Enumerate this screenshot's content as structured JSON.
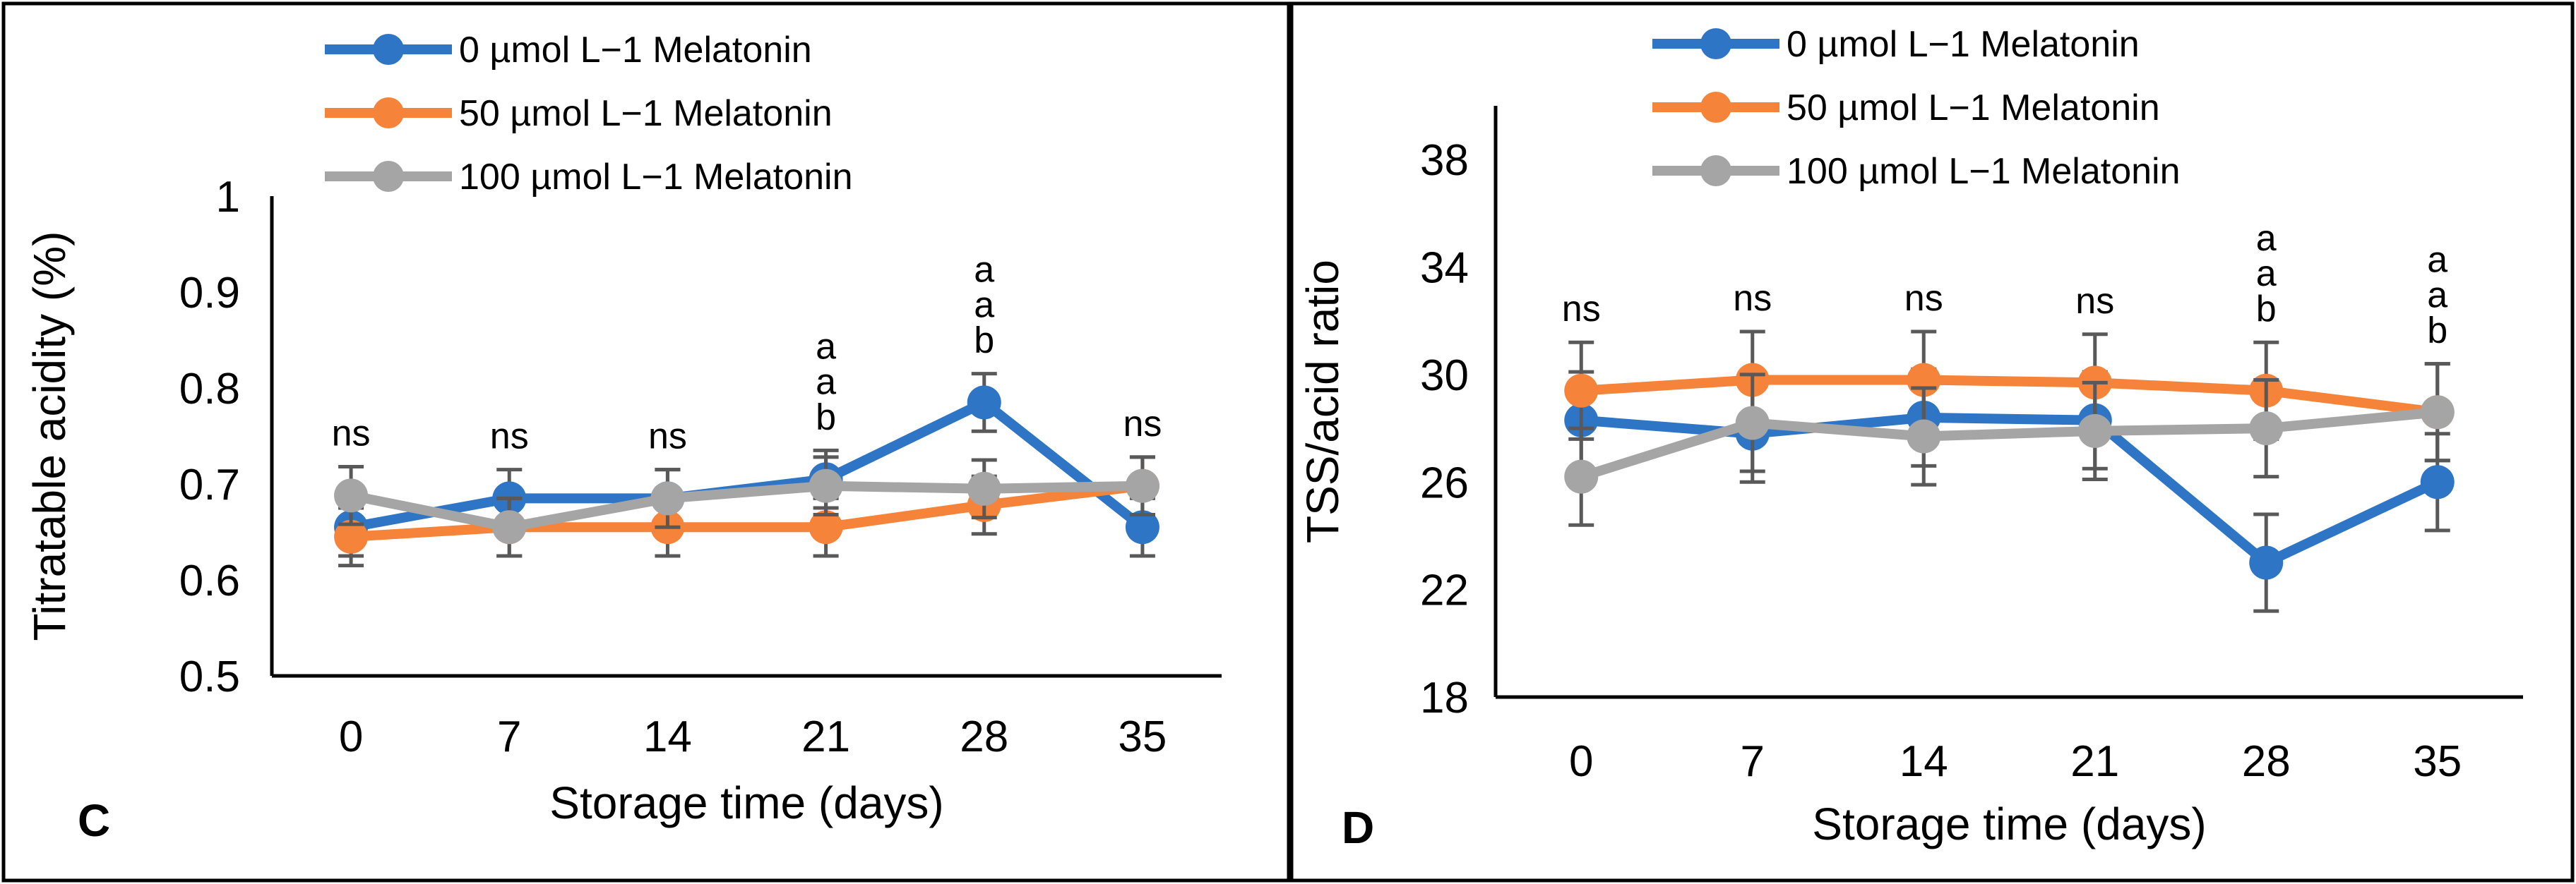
{
  "chart_data": [
    {
      "type": "line",
      "panel_label": "C",
      "xlabel": "Storage time (days)",
      "ylabel": "Titratable acidity (%)",
      "categories": [
        "0",
        "7",
        "14",
        "21",
        "28",
        "35"
      ],
      "ylim": [
        0.5,
        1
      ],
      "yticks": [
        "0.5",
        "0.6",
        "0.7",
        "0.8",
        "0.9",
        "1"
      ],
      "series": [
        {
          "name": "0 µmol L−1 Melatonin",
          "color": "#2E75C6",
          "values": [
            0.655,
            0.685,
            0.685,
            0.705,
            0.785,
            0.655
          ],
          "errors": [
            0.03,
            0.03,
            0.03,
            0.03,
            0.03,
            0.03
          ]
        },
        {
          "name": "50 µmol L−1 Melatonin",
          "color": "#F5843A",
          "values": [
            0.645,
            0.655,
            0.655,
            0.655,
            0.678,
            0.698
          ],
          "errors": [
            0.03,
            0.03,
            0.03,
            0.03,
            0.03,
            0.03
          ]
        },
        {
          "name": "100 µmol L−1 Melatonin",
          "color": "#A5A5A5",
          "values": [
            0.688,
            0.655,
            0.685,
            0.698,
            0.695,
            0.698
          ],
          "errors": [
            0.03,
            0.03,
            0.03,
            0.03,
            0.03,
            0.03
          ]
        }
      ],
      "significance": [
        [
          "ns"
        ],
        [
          "ns"
        ],
        [
          "ns"
        ],
        [
          "a",
          "a",
          "b"
        ],
        [
          "a",
          "a",
          "b"
        ],
        [
          "ns"
        ]
      ]
    },
    {
      "type": "line",
      "panel_label": "D",
      "xlabel": "Storage time (days)",
      "ylabel": "TSS/acid ratio",
      "categories": [
        "0",
        "7",
        "14",
        "21",
        "28",
        "35"
      ],
      "ylim": [
        18,
        40
      ],
      "yticks": [
        "18",
        "22",
        "26",
        "30",
        "34",
        "38"
      ],
      "series": [
        {
          "name": "0 µmol L−1 Melatonin",
          "color": "#2E75C6",
          "values": [
            28.3,
            27.8,
            28.4,
            28.3,
            23.0,
            26.0
          ],
          "errors": [
            1.8,
            1.8,
            1.8,
            1.8,
            1.8,
            1.8
          ]
        },
        {
          "name": "50 µmol L−1 Melatonin",
          "color": "#F5843A",
          "values": [
            29.4,
            29.8,
            29.8,
            29.7,
            29.4,
            28.6
          ],
          "errors": [
            1.8,
            1.8,
            1.8,
            1.8,
            1.8,
            1.8
          ]
        },
        {
          "name": "100 µmol L−1 Melatonin",
          "color": "#A5A5A5",
          "values": [
            26.2,
            28.2,
            27.7,
            27.9,
            28.0,
            28.6
          ],
          "errors": [
            1.8,
            1.8,
            1.8,
            1.8,
            1.8,
            1.8
          ]
        }
      ],
      "significance": [
        [
          "ns"
        ],
        [
          "ns"
        ],
        [
          "ns"
        ],
        [
          "ns"
        ],
        [
          "a",
          "a",
          "b"
        ],
        [
          "a",
          "a",
          "b"
        ]
      ]
    }
  ]
}
